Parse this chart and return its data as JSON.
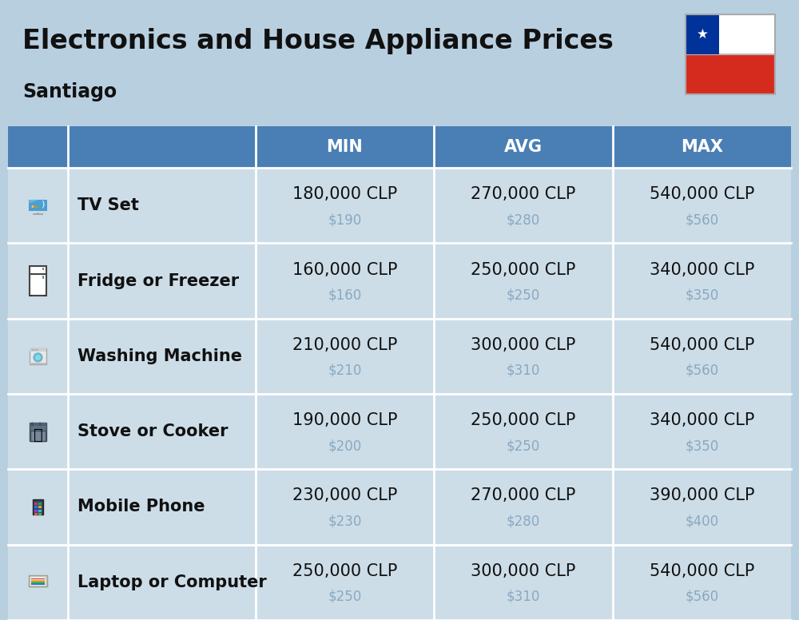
{
  "title": "Electronics and House Appliance Prices",
  "subtitle": "Santiago",
  "background_color": "#b8cfe0",
  "header_color": "#4a7fb5",
  "header_text_color": "#ffffff",
  "row_bg_light": "#ccdde8",
  "row_bg_alt": "#bfd0e0",
  "divider_color": "#ffffff",
  "columns": [
    "MIN",
    "AVG",
    "MAX"
  ],
  "rows": [
    {
      "name": "TV Set",
      "min_clp": "180,000 CLP",
      "min_usd": "$190",
      "avg_clp": "270,000 CLP",
      "avg_usd": "$280",
      "max_clp": "540,000 CLP",
      "max_usd": "$560"
    },
    {
      "name": "Fridge or Freezer",
      "min_clp": "160,000 CLP",
      "min_usd": "$160",
      "avg_clp": "250,000 CLP",
      "avg_usd": "$250",
      "max_clp": "340,000 CLP",
      "max_usd": "$350"
    },
    {
      "name": "Washing Machine",
      "min_clp": "210,000 CLP",
      "min_usd": "$210",
      "avg_clp": "300,000 CLP",
      "avg_usd": "$310",
      "max_clp": "540,000 CLP",
      "max_usd": "$560"
    },
    {
      "name": "Stove or Cooker",
      "min_clp": "190,000 CLP",
      "min_usd": "$200",
      "avg_clp": "250,000 CLP",
      "avg_usd": "$250",
      "max_clp": "340,000 CLP",
      "max_usd": "$350"
    },
    {
      "name": "Mobile Phone",
      "min_clp": "230,000 CLP",
      "min_usd": "$230",
      "avg_clp": "270,000 CLP",
      "avg_usd": "$280",
      "max_clp": "390,000 CLP",
      "max_usd": "$400"
    },
    {
      "name": "Laptop or Computer",
      "min_clp": "250,000 CLP",
      "min_usd": "$250",
      "avg_clp": "300,000 CLP",
      "avg_usd": "$310",
      "max_clp": "540,000 CLP",
      "max_usd": "$560"
    }
  ],
  "title_fontsize": 24,
  "subtitle_fontsize": 17,
  "header_fontsize": 15,
  "name_fontsize": 15,
  "value_fontsize": 15,
  "usd_fontsize": 12,
  "usd_color": "#8aA8c0",
  "name_color": "#111111",
  "value_color": "#111111"
}
